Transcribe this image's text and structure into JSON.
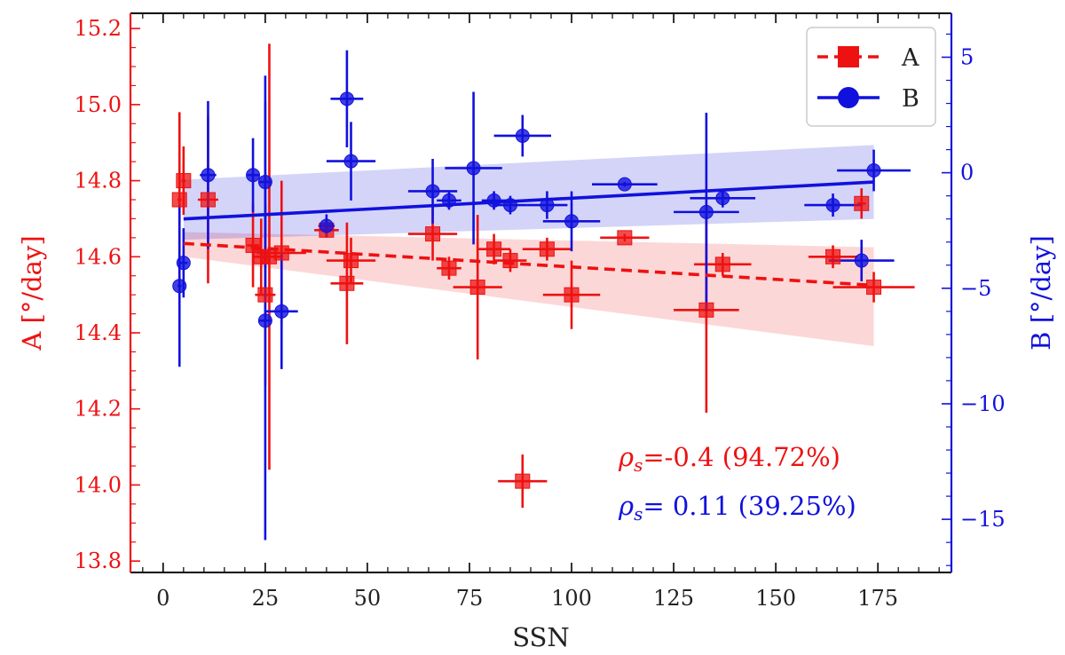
{
  "chart_data": {
    "type": "scatter",
    "xlabel": "SSN",
    "ylabel_left": "A  [°/day]",
    "ylabel_right": "B  [°/day]",
    "xlim": [
      -8,
      193
    ],
    "ylim_left": [
      13.77,
      15.24
    ],
    "ylim_right": [
      -17.3,
      6.9
    ],
    "x_ticks": [
      0,
      25,
      50,
      75,
      100,
      125,
      150,
      175
    ],
    "x_tick_labels": [
      "0",
      "25",
      "50",
      "75",
      "100",
      "125",
      "150",
      "175"
    ],
    "y_left_ticks": [
      13.8,
      14.0,
      14.2,
      14.4,
      14.6,
      14.8,
      15.0,
      15.2
    ],
    "y_left_tick_labels": [
      "13.8",
      "14.0",
      "14.2",
      "14.4",
      "14.6",
      "14.8",
      "15.0",
      "15.2"
    ],
    "y_right_ticks": [
      -15,
      -10,
      -5,
      0,
      5
    ],
    "y_right_tick_labels": [
      "−15",
      "−10",
      "−5",
      "0",
      "5"
    ],
    "colors": {
      "A": "#ee1111",
      "B": "#1111dd"
    },
    "legend": [
      {
        "label": "A",
        "marker": "square",
        "line": "dashed",
        "color": "#ee1111"
      },
      {
        "label": "B",
        "marker": "circle",
        "line": "solid",
        "color": "#1111dd"
      }
    ],
    "legend_location": "top-right",
    "series": [
      {
        "name": "A",
        "axis": "left",
        "points": [
          {
            "x": 4,
            "y": 14.75,
            "xerr": 0.5,
            "yerr": 0.23
          },
          {
            "x": 5,
            "y": 14.8,
            "xerr": 0.5,
            "yerr": 0.09
          },
          {
            "x": 11,
            "y": 14.75,
            "xerr": 2.5,
            "yerr": 0.22
          },
          {
            "x": 22,
            "y": 14.63,
            "xerr": 1.5,
            "yerr": 0.11
          },
          {
            "x": 24,
            "y": 14.6,
            "xerr": 2,
            "yerr": 0.1
          },
          {
            "x": 25,
            "y": 14.5,
            "xerr": 2.5,
            "yerr": 0.24
          },
          {
            "x": 26,
            "y": 14.6,
            "xerr": 3,
            "yerr": 0.56
          },
          {
            "x": 29,
            "y": 14.61,
            "xerr": 6,
            "yerr": 0.19
          },
          {
            "x": 40,
            "y": 14.67,
            "xerr": 3,
            "yerr": 0.02
          },
          {
            "x": 45,
            "y": 14.53,
            "xerr": 4,
            "yerr": 0.16
          },
          {
            "x": 46,
            "y": 14.59,
            "xerr": 6,
            "yerr": 0.06
          },
          {
            "x": 66,
            "y": 14.66,
            "xerr": 6,
            "yerr": 0.07
          },
          {
            "x": 70,
            "y": 14.57,
            "xerr": 3,
            "yerr": 0.03
          },
          {
            "x": 77,
            "y": 14.52,
            "xerr": 6,
            "yerr": 0.19
          },
          {
            "x": 81,
            "y": 14.62,
            "xerr": 4,
            "yerr": 0.04
          },
          {
            "x": 85,
            "y": 14.59,
            "xerr": 4,
            "yerr": 0.03
          },
          {
            "x": 88,
            "y": 14.01,
            "xerr": 6,
            "yerr": 0.07
          },
          {
            "x": 94,
            "y": 14.62,
            "xerr": 6,
            "yerr": 0.03
          },
          {
            "x": 100,
            "y": 14.5,
            "xerr": 7,
            "yerr": 0.09
          },
          {
            "x": 113,
            "y": 14.65,
            "xerr": 6,
            "yerr": 0.01
          },
          {
            "x": 133,
            "y": 14.46,
            "xerr": 8,
            "yerr": 0.27
          },
          {
            "x": 137,
            "y": 14.58,
            "xerr": 7,
            "yerr": 0.03
          },
          {
            "x": 164,
            "y": 14.6,
            "xerr": 6,
            "yerr": 0.03
          },
          {
            "x": 171,
            "y": 14.74,
            "xerr": 1,
            "yerr": 0.04
          },
          {
            "x": 174,
            "y": 14.52,
            "xerr": 10,
            "yerr": 0.04
          }
        ],
        "fit": {
          "x": [
            5,
            174
          ],
          "y": [
            14.635,
            14.525
          ]
        },
        "band": {
          "x": [
            5,
            174
          ],
          "upper": [
            14.665,
            14.625
          ],
          "lower": [
            14.6,
            14.365
          ]
        }
      },
      {
        "name": "B",
        "axis": "right",
        "points": [
          {
            "x": 4,
            "y": -4.9,
            "xerr": 0.5,
            "yerr": 3.5
          },
          {
            "x": 5,
            "y": -3.9,
            "xerr": 1,
            "yerr": 1.5
          },
          {
            "x": 11,
            "y": -0.1,
            "xerr": 2,
            "yerr": 3.2
          },
          {
            "x": 22,
            "y": -0.1,
            "xerr": 1.5,
            "yerr": 1.6
          },
          {
            "x": 25,
            "y": -0.4,
            "xerr": 1.5,
            "yerr": 4.6
          },
          {
            "x": 25,
            "y": -6.4,
            "xerr": 1.5,
            "yerr": 9.5
          },
          {
            "x": 29,
            "y": -6,
            "xerr": 4,
            "yerr": 2.5
          },
          {
            "x": 40,
            "y": -2.3,
            "xerr": 2,
            "yerr": 0.5
          },
          {
            "x": 45,
            "y": 3.2,
            "xerr": 4,
            "yerr": 2.1
          },
          {
            "x": 46,
            "y": 0.5,
            "xerr": 6,
            "yerr": 1.7
          },
          {
            "x": 66,
            "y": -0.8,
            "xerr": 6,
            "yerr": 1.4
          },
          {
            "x": 70,
            "y": -1.2,
            "xerr": 3,
            "yerr": 0.4
          },
          {
            "x": 76,
            "y": 0.2,
            "xerr": 7,
            "yerr": 3.3
          },
          {
            "x": 81,
            "y": -1.2,
            "xerr": 3,
            "yerr": 0.4
          },
          {
            "x": 85,
            "y": -1.4,
            "xerr": 4,
            "yerr": 0.4
          },
          {
            "x": 88,
            "y": 1.6,
            "xerr": 7,
            "yerr": 0.9
          },
          {
            "x": 94,
            "y": -1.4,
            "xerr": 5,
            "yerr": 0.6
          },
          {
            "x": 100,
            "y": -2.1,
            "xerr": 7,
            "yerr": 1.3
          },
          {
            "x": 113,
            "y": -0.5,
            "xerr": 8,
            "yerr": 0.1
          },
          {
            "x": 133,
            "y": -1.7,
            "xerr": 8,
            "yerr": 4.3
          },
          {
            "x": 137,
            "y": -1.1,
            "xerr": 8,
            "yerr": 0.4
          },
          {
            "x": 164,
            "y": -1.4,
            "xerr": 7,
            "yerr": 0.5
          },
          {
            "x": 171,
            "y": -3.8,
            "xerr": 8,
            "yerr": 0.9
          },
          {
            "x": 174,
            "y": 0.1,
            "xerr": 9,
            "yerr": 0.9
          }
        ],
        "fit": {
          "x": [
            5,
            174
          ],
          "y": [
            -2,
            -0.4
          ]
        },
        "band": {
          "x": [
            5,
            174
          ],
          "upper": [
            -0.3,
            1.2
          ],
          "lower": [
            -2.9,
            -2
          ]
        }
      }
    ],
    "annotations": [
      {
        "series": "A",
        "symbol": "ρ",
        "subscript": "s",
        "text": "=-0.4  (94.72%)"
      },
      {
        "series": "B",
        "symbol": "ρ",
        "subscript": "s",
        "text": "= 0.11  (39.25%)"
      }
    ]
  }
}
